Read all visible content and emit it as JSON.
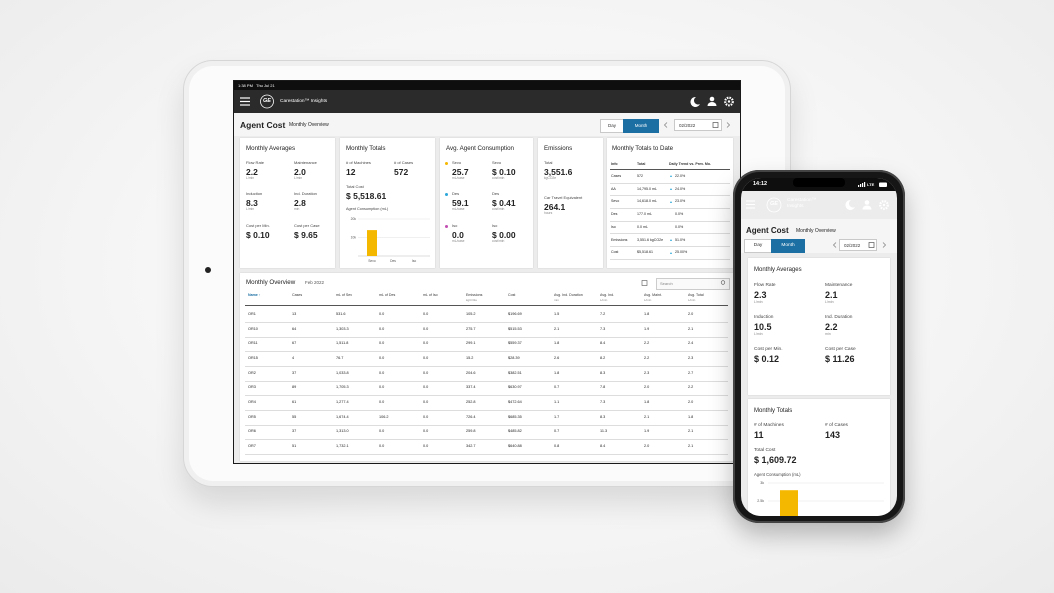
{
  "tablet": {
    "status": {
      "time": "1:38 PM",
      "date": "Thu Jul 21"
    },
    "logo": "GE",
    "app_name": "Carestation™ Insights",
    "page_title": "Agent Cost",
    "page_subtitle": "Monthly Overview",
    "toggle": [
      "Day",
      "Month"
    ],
    "date": "02/2022",
    "monthly_averages": {
      "title": "Monthly Averages",
      "items": [
        {
          "label": "Flow Rate",
          "value": "2.2",
          "unit": "L/min"
        },
        {
          "label": "Maintenance",
          "value": "2.0",
          "unit": "L/min"
        },
        {
          "label": "Induction",
          "value": "8.3",
          "unit": "L/min"
        },
        {
          "label": "Ind. Duration",
          "value": "2.8",
          "unit": "min"
        },
        {
          "label": "Cost per Min.",
          "value": "$ 0.10"
        },
        {
          "label": "Cost per Case",
          "value": "$ 9.65"
        }
      ]
    },
    "monthly_totals": {
      "title": "Monthly Totals",
      "items": [
        {
          "label": "# of Machines",
          "value": "12"
        },
        {
          "label": "# of Cases",
          "value": "572"
        }
      ],
      "total_cost": {
        "label": "Total Cost",
        "value": "$ 5,518.61"
      },
      "chart": {
        "type": "bar",
        "title": "Agent Consumption (mL)",
        "categories": [
          "Sevo",
          "Des",
          "Iso"
        ],
        "values": [
          14000,
          0,
          0
        ],
        "color": "#f5b800",
        "ylim": [
          0,
          20000
        ],
        "yticks": [
          {
            "value": 10000,
            "label": "10k"
          },
          {
            "value": 20000,
            "label": "20k"
          }
        ]
      }
    },
    "avg_agent_consumption": {
      "title": "Avg. Agent Consumption",
      "rows": [
        {
          "agent": "Sevo",
          "color": "#f5b800",
          "amount": "25.7",
          "amount_unit": "mL/case",
          "cost_label": "Sevo",
          "cost": "$ 0.10",
          "cost_unit": "cost/min"
        },
        {
          "agent": "Des",
          "color": "#2aa6d8",
          "amount": "59.1",
          "amount_unit": "mL/case",
          "cost_label": "Des",
          "cost": "$ 0.41",
          "cost_unit": "cost/min"
        },
        {
          "agent": "Iso",
          "color": "#c34fb2",
          "amount": "0.0",
          "amount_unit": "mL/case",
          "cost_label": "Iso",
          "cost": "$ 0.00",
          "cost_unit": "cost/min"
        }
      ]
    },
    "emissions": {
      "title": "Emissions",
      "items": [
        {
          "label": "Total",
          "value": "3,551.6",
          "unit": "kgCO2e"
        },
        {
          "label": "Car Travel Equivalent",
          "value": "264.1",
          "unit": "hours"
        }
      ]
    },
    "totals_to_date": {
      "title": "Monthly Totals to Date",
      "columns": [
        "Info",
        "Total",
        "Daily Trend vs. Prev. Mo."
      ],
      "rows": [
        {
          "info": "Cases",
          "total": "572",
          "trend": "22.0%",
          "direction": "up"
        },
        {
          "info": "AA",
          "total": "14,795.0 mL",
          "trend": "24.0%",
          "direction": "up"
        },
        {
          "info": "Sevo",
          "total": "14,618.0 mL",
          "trend": "23.0%",
          "direction": "up"
        },
        {
          "info": "Des",
          "total": "177.0 mL",
          "trend": "0.0%",
          "direction": "flat"
        },
        {
          "info": "Iso",
          "total": "0.0 mL",
          "trend": "0.0%",
          "direction": "flat"
        },
        {
          "info": "Emissions",
          "total": "3,551.6 kgCO2e",
          "trend": "51.0%",
          "direction": "up"
        },
        {
          "info": "Cost",
          "total": "$5,518.61",
          "trend": "25.00%",
          "direction": "up"
        }
      ]
    },
    "overview": {
      "title": "Monthly Overview",
      "period": "Feb 2022",
      "search_placeholder": "Search",
      "columns": [
        {
          "label": "Name ↑"
        },
        {
          "label": "Cases"
        },
        {
          "label": "mL of Sev"
        },
        {
          "label": "mL of Des"
        },
        {
          "label": "mL of Iso"
        },
        {
          "label": "Emissions",
          "unit": "kgCO2e"
        },
        {
          "label": "Cost"
        },
        {
          "label": "Avg. Ind. Duration",
          "unit": "min"
        },
        {
          "label": "Avg. Ind.",
          "unit": "L/min"
        },
        {
          "label": "Avg. Maint.",
          "unit": "L/min"
        },
        {
          "label": "Avg. Total",
          "unit": "L/min"
        }
      ],
      "rows": [
        [
          "OR1",
          "13",
          "531.6",
          "0.0",
          "0.0",
          "105.2",
          "$196.69",
          "1.5",
          "7.2",
          "1.8",
          "2.0"
        ],
        [
          "OR10",
          "64",
          "1,303.3",
          "0.0",
          "0.0",
          "275.7",
          "$515.53",
          "2.1",
          "7.3",
          "1.9",
          "2.1"
        ],
        [
          "OR11",
          "67",
          "1,511.8",
          "0.0",
          "0.0",
          "299.1",
          "$559.37",
          "1.8",
          "8.4",
          "2.2",
          "2.4"
        ],
        [
          "OR15",
          "4",
          "76.7",
          "0.0",
          "0.0",
          "15.2",
          "$28.39",
          "2.6",
          "8.2",
          "2.2",
          "2.3"
        ],
        [
          "OR2",
          "37",
          "1,033.8",
          "0.0",
          "0.0",
          "204.6",
          "$382.51",
          "1.8",
          "8.3",
          "2.3",
          "2.7"
        ],
        [
          "OR3",
          "89",
          "1,705.3",
          "0.0",
          "0.0",
          "337.4",
          "$630.97",
          "0.7",
          "7.8",
          "2.0",
          "2.2"
        ],
        [
          "OR4",
          "61",
          "1,277.4",
          "0.0",
          "0.0",
          "252.8",
          "$472.64",
          "1.1",
          "7.3",
          "1.8",
          "2.0"
        ],
        [
          "OR5",
          "55",
          "1,674.4",
          "106.2",
          "0.0",
          "726.4",
          "$685.35",
          "1.7",
          "8.3",
          "2.1",
          "1.8"
        ],
        [
          "OR6",
          "37",
          "1,313.0",
          "0.0",
          "0.0",
          "259.8",
          "$485.82",
          "0.7",
          "11.3",
          "1.9",
          "2.1"
        ],
        [
          "OR7",
          "51",
          "1,732.1",
          "0.0",
          "0.0",
          "342.7",
          "$640.88",
          "0.8",
          "8.4",
          "2.0",
          "2.1"
        ]
      ]
    }
  },
  "phone": {
    "status": {
      "time": "14:12",
      "network": "LTE"
    },
    "logo": "GE",
    "app_name": "Carestation™ Insights",
    "page_title": "Agent Cost",
    "page_subtitle": "Monthly Overview",
    "toggle": [
      "Day",
      "Month"
    ],
    "date": "02/2022",
    "monthly_averages": {
      "title": "Monthly Averages",
      "items": [
        {
          "label": "Flow Rate",
          "value": "2.3",
          "unit": "L/min"
        },
        {
          "label": "Maintenance",
          "value": "2.1",
          "unit": "L/min"
        },
        {
          "label": "Induction",
          "value": "10.5",
          "unit": "L/min"
        },
        {
          "label": "Ind. Duration",
          "value": "2.2",
          "unit": "min"
        },
        {
          "label": "Cost per Min.",
          "value": "$ 0.12"
        },
        {
          "label": "Cost per Case",
          "value": "$ 11.26"
        }
      ]
    },
    "monthly_totals": {
      "title": "Monthly Totals",
      "items": [
        {
          "label": "# of Machines",
          "value": "11"
        },
        {
          "label": "# of Cases",
          "value": "143"
        }
      ],
      "total_cost": {
        "label": "Total Cost",
        "value": "$ 1,609.72"
      },
      "chart": {
        "type": "bar",
        "title": "Agent Consumption (mL)",
        "values": [
          2800
        ],
        "color": "#f5b800",
        "ylim": [
          0,
          3000
        ],
        "yticks": [
          {
            "value": 2500,
            "label": "2.5k"
          },
          {
            "value": 3000,
            "label": "3k"
          }
        ]
      }
    }
  }
}
